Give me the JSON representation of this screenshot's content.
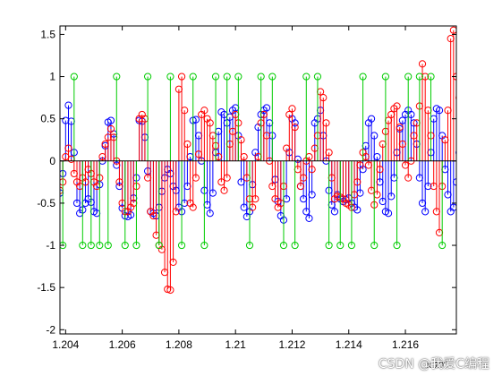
{
  "chart_data": {
    "type": "stem",
    "title": "",
    "xlabel": "",
    "ylabel": "",
    "xlim": [
      1.2038,
      1.2178
    ],
    "ylim": [
      -2.05,
      1.6
    ],
    "x_ticks": [
      1.204,
      1.206,
      1.208,
      1.21,
      1.212,
      1.214,
      1.216
    ],
    "x_tick_labels": [
      "1.204",
      "1.206",
      "1.208",
      "1.21",
      "1.212",
      "1.214",
      "1.216"
    ],
    "x_exponent_label": "x 10",
    "x_exponent_superscript": "4",
    "y_ticks": [
      -2,
      -1.5,
      -1,
      -0.5,
      0,
      0.5,
      1,
      1.5
    ],
    "y_tick_labels": [
      "-2",
      "-1.5",
      "-1",
      "-0.5",
      "0",
      "0.5",
      "1",
      "1.5"
    ],
    "baseline": 0,
    "grid": false,
    "legend": "none",
    "series": [
      {
        "color": "#0000ff",
        "x_start": 1.2038,
        "x_step": 0.0001,
        "values": [
          -0.38,
          -0.15,
          0.48,
          0.66,
          0.47,
          0.1,
          -0.5,
          -0.62,
          -0.58,
          -0.5,
          -0.45,
          -0.49,
          -0.6,
          -0.62,
          -0.28,
          0.0,
          0.18,
          0.46,
          0.48,
          0.32,
          -0.05,
          -0.3,
          -0.56,
          -0.65,
          -0.66,
          -0.64,
          -0.44,
          -0.2,
          0.48,
          0.47,
          0.28,
          -0.12,
          -0.6,
          -0.62,
          -0.65,
          -0.55,
          -0.36,
          -0.2,
          -0.1,
          -0.15,
          -0.3,
          -0.35,
          -0.55,
          -0.6,
          -0.5,
          -0.3,
          0.05,
          0.48,
          0.49,
          0.3,
          0.0,
          -0.35,
          -0.52,
          -0.62,
          -0.38,
          0.1,
          0.35,
          0.58,
          0.55,
          0.45,
          0.52,
          0.6,
          0.63,
          0.3,
          -0.25,
          -0.55,
          -0.66,
          -0.6,
          -0.28,
          0.1,
          0.4,
          0.55,
          0.6,
          0.63,
          0.45,
          0.3,
          -0.22,
          -0.48,
          -0.65,
          -0.7,
          -0.45,
          0.1,
          0.5,
          0.45,
          0.02,
          -0.3,
          -0.45,
          -0.6,
          -0.68,
          -0.4,
          0.45,
          0.5,
          0.6,
          0.3,
          0.0,
          -0.35,
          -0.52,
          -0.6,
          -0.4,
          -0.45,
          -0.48,
          -0.46,
          -0.44,
          -0.5,
          -0.55,
          -0.58,
          -0.38,
          -0.1,
          0.18,
          0.45,
          0.5,
          0.3,
          0.05,
          -0.25,
          -0.48,
          -0.6,
          -0.62,
          -0.42,
          -0.2,
          0.1,
          0.38,
          0.48,
          0.55,
          0.6,
          0.55,
          0.45,
          0.2,
          -0.2,
          -0.5,
          -0.6,
          -0.3,
          0.1,
          0.5,
          0.62,
          0.6,
          0.3,
          -0.1,
          -0.4,
          -0.6,
          -0.55,
          -0.25,
          0.1,
          0.35,
          0.55,
          0.65,
          0.6,
          0.53
        ]
      },
      {
        "color": "#ff0000",
        "x_start": 1.2038,
        "x_step": 0.0001,
        "values": [
          -0.35,
          -0.25,
          0.05,
          0.15,
          0.02,
          -0.15,
          -0.25,
          -0.3,
          -0.2,
          -0.25,
          -0.1,
          -0.15,
          -0.25,
          -0.3,
          -0.2,
          0.05,
          0.2,
          0.28,
          0.38,
          0.28,
          0.0,
          -0.25,
          -0.5,
          -0.6,
          -0.6,
          -0.55,
          -0.5,
          -0.3,
          0.5,
          0.55,
          0.5,
          -0.2,
          -0.6,
          -0.65,
          -0.88,
          -1.0,
          -1.05,
          -1.32,
          -1.52,
          -1.53,
          -1.2,
          -0.6,
          0.85,
          1.0,
          0.6,
          0.2,
          -0.5,
          -0.55,
          -0.2,
          0.08,
          0.55,
          0.6,
          0.5,
          0.45,
          0.3,
          0.18,
          0.05,
          -0.25,
          -0.35,
          -0.2,
          0.2,
          0.35,
          0.55,
          0.45,
          0.25,
          0.05,
          -0.2,
          -0.45,
          -0.55,
          -0.45,
          0.05,
          0.45,
          0.55,
          0.3,
          0.0,
          -0.3,
          -0.45,
          -0.55,
          -0.5,
          -0.3,
          0.15,
          0.55,
          0.62,
          0.4,
          -0.1,
          -0.3,
          -0.2,
          0.0,
          0.05,
          -0.1,
          0.15,
          0.3,
          0.82,
          0.75,
          0.45,
          0.1,
          -0.2,
          -0.45,
          -0.42,
          -0.43,
          -0.45,
          -0.5,
          -0.52,
          -0.55,
          -0.4,
          -0.25,
          -0.05,
          0.1,
          0.05,
          -0.05,
          -0.35,
          -0.52,
          -0.4,
          -0.1,
          0.2,
          0.35,
          0.48,
          0.55,
          0.62,
          0.65,
          0.4,
          0.2,
          -0.05,
          -0.2,
          0.0,
          0.3,
          0.45,
          0.65,
          1.15,
          1.0,
          0.6,
          0.3,
          -0.3,
          -0.6,
          -0.85,
          -0.3,
          0.25,
          0.6,
          1.45,
          1.55,
          1.0,
          0.75,
          0.55,
          0.45
        ]
      },
      {
        "color": "#00cc00",
        "x_values": [
          1.2039,
          1.2043,
          1.2046,
          1.2049,
          1.2052,
          1.2055,
          1.2058,
          1.2061,
          1.2065,
          1.2069,
          1.2073,
          1.2077,
          1.2081,
          1.2085,
          1.2089,
          1.2093,
          1.2097,
          1.2101,
          1.2105,
          1.2109,
          1.2113,
          1.2117,
          1.2121,
          1.2125,
          1.2129,
          1.2133,
          1.2137,
          1.2141,
          1.2145,
          1.2149,
          1.2153,
          1.2157,
          1.2161,
          1.2165,
          1.2169,
          1.2173
        ],
        "values": [
          -1,
          1,
          -1,
          -1,
          -1,
          -1,
          1,
          -1,
          -1,
          1,
          -1,
          1,
          -1,
          1,
          -1,
          1,
          1,
          1,
          -1,
          1,
          1,
          -1,
          -1,
          1,
          1,
          -1,
          -1,
          -1,
          1,
          -1,
          1,
          -1,
          1,
          1,
          1,
          -1
        ]
      }
    ]
  },
  "watermark": "CSDN @我爱C编程"
}
